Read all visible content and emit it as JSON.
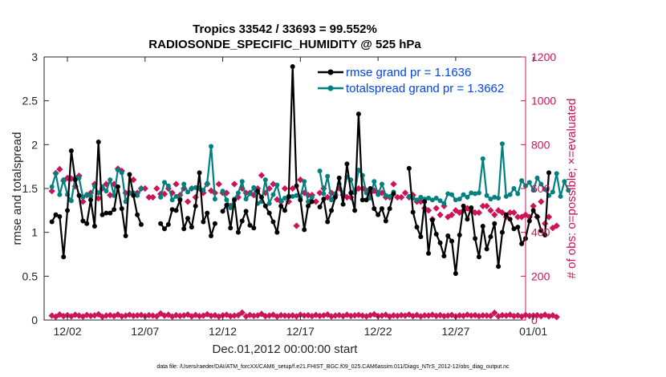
{
  "chart_data": {
    "type": "line",
    "title": [
      "Tropics 33542 / 33693 = 99.552%",
      "RADIOSONDE_SPECIFIC_HUMIDITY @ 525 hPa"
    ],
    "xlabel": "Dec.01,2012 00:00:00 start",
    "ylabel_left": "rmse and totalspread",
    "ylabel_right": "# of obs: o=possible; ×=evaluated",
    "x_range_days": [
      0.5,
      31.5
    ],
    "ylim_left": [
      0,
      3
    ],
    "ylim_right": [
      0,
      1200
    ],
    "x_ticks": [
      {
        "day": 2,
        "label": "12/02"
      },
      {
        "day": 7,
        "label": "12/07"
      },
      {
        "day": 12,
        "label": "12/12"
      },
      {
        "day": 17,
        "label": "12/17"
      },
      {
        "day": 22,
        "label": "12/22"
      },
      {
        "day": 27,
        "label": "12/27"
      },
      {
        "day": 32,
        "label": "01/01"
      }
    ],
    "y_ticks_left": [
      "0",
      "0.5",
      "1",
      "1.5",
      "2",
      "2.5",
      "3"
    ],
    "y_ticks_right": [
      "0",
      "200",
      "400",
      "600",
      "800",
      "1000",
      "1200"
    ],
    "step_days": 0.25,
    "series": [
      {
        "name": "rmse",
        "legend": "rmse grand pr = 1.1636",
        "color": "#000000",
        "axis": "left",
        "values": [
          1.12,
          1.2,
          1.18,
          0.72,
          1.25,
          1.93,
          1.6,
          1.42,
          1.13,
          1.1,
          1.37,
          1.07,
          2.03,
          1.2,
          1.22,
          1.22,
          1.26,
          1.52,
          1.27,
          0.96,
          1.66,
          1.42,
          1.2,
          1.09,
          null,
          null,
          null,
          null,
          1.1,
          1.04,
          1.09,
          1.26,
          1.25,
          1.37,
          1.04,
          1.16,
          1.06,
          1.3,
          1.68,
          1.12,
          1.22,
          0.96,
          1.1,
          null,
          1.24,
          1.31,
          1.05,
          1.37,
          1.0,
          1.13,
          1.24,
          1.08,
          1.05,
          1.47,
          1.4,
          1.3,
          1.22,
          1.12,
          1.0,
          1.3,
          1.25,
          1.41,
          2.89,
          1.53,
          1.37,
          1.03,
          1.3,
          1.35,
          null,
          1.29,
          1.38,
          1.12,
          1.25,
          1.4,
          1.62,
          1.32,
          1.78,
          1.45,
          1.25,
          2.35,
          1.37,
          1.37,
          1.5,
          1.27,
          1.2,
          1.27,
          1.13,
          1.27,
          1.44,
          null,
          null,
          null,
          1.73,
          1.23,
          1.06,
          0.95,
          1.35,
          0.76,
          1.14,
          0.98,
          0.88,
          0.73,
          0.96,
          0.9,
          0.53,
          0.97,
          1.3,
          1.15,
          1.28,
          0.93,
          0.72,
          1.07,
          0.81,
          0.95,
          1.1,
          0.61,
          1.0,
          1.2,
          1.15,
          1.04,
          1.06,
          0.87,
          0.93,
          1.13,
          1.25,
          1.18,
          1.02,
          0.97,
          1.68
        ]
      },
      {
        "name": "totalspread",
        "legend": "totalspread grand pr = 1.3662",
        "color": "#00807f",
        "axis": "left",
        "values": [
          1.52,
          1.67,
          1.43,
          1.6,
          1.43,
          1.36,
          1.62,
          1.62,
          1.4,
          1.43,
          1.41,
          1.53,
          1.45,
          1.52,
          1.47,
          1.6,
          1.42,
          1.71,
          1.68,
          1.35,
          1.45,
          1.45,
          1.42,
          1.5,
          null,
          null,
          null,
          null,
          1.4,
          1.57,
          1.53,
          1.37,
          1.41,
          1.38,
          1.55,
          1.46,
          1.5,
          1.51,
          1.5,
          1.48,
          1.56,
          1.98,
          1.38,
          null,
          1.47,
          1.37,
          1.28,
          1.38,
          1.45,
          1.58,
          1.38,
          1.44,
          1.51,
          1.33,
          1.35,
          1.6,
          1.33,
          1.43,
          1.54,
          1.36,
          1.39,
          1.4,
          1.41,
          1.42,
          1.4,
          1.58,
          1.35,
          1.4,
          null,
          1.7,
          1.44,
          1.64,
          1.37,
          1.44,
          1.55,
          1.44,
          1.63,
          1.6,
          1.45,
          1.71,
          1.65,
          1.45,
          1.39,
          1.58,
          1.43,
          1.55,
          1.42,
          1.41,
          1.46,
          null,
          null,
          null,
          1.41,
          1.39,
          1.37,
          1.4,
          1.38,
          1.39,
          1.37,
          1.39,
          1.36,
          1.33,
          1.44,
          1.43,
          1.37,
          1.38,
          1.43,
          1.4,
          1.45,
          1.44,
          1.45,
          1.84,
          1.42,
          1.38,
          1.4,
          1.39,
          2.01,
          1.41,
          1.43,
          1.5,
          1.44,
          1.59,
          1.53,
          1.57,
          1.48,
          1.62,
          1.55,
          1.49,
          1.42,
          1.46,
          1.67,
          1.41,
          1.58,
          1.48
        ]
      },
      {
        "name": "evaluated",
        "color": "#cc1456",
        "axis": "right",
        "values": [
          588,
          670,
          688,
          635,
          648,
          645,
          610,
          658,
          540,
          570,
          580,
          620,
          555,
          600,
          620,
          570,
          620,
          690,
          680,
          580,
          580,
          640,
          580,
          600,
          600,
          560,
          560,
          600,
          575,
          575,
          600,
          580,
          620,
          570,
          600,
          540,
          600,
          560,
          600,
          580,
          620,
          590,
          580,
          620,
          580,
          580,
          520,
          620,
          560,
          600,
          580,
          580,
          570,
          600,
          660,
          580,
          600,
          620,
          550,
          540,
          600,
          540,
          600,
          430,
          640,
          580,
          570,
          570,
          540,
          580,
          600,
          560,
          580,
          570,
          600,
          570,
          560,
          560,
          590,
          600,
          600,
          590,
          580,
          590,
          580,
          580,
          560,
          560,
          620,
          560,
          560,
          580,
          560,
          570,
          540,
          540,
          510,
          500,
          460,
          510,
          480,
          520,
          470,
          480,
          500,
          490,
          500,
          510,
          500,
          490,
          490,
          520,
          520,
          500,
          480,
          500,
          490,
          470,
          490,
          490,
          470,
          470,
          480,
          470,
          520,
          470,
          540,
          440,
          470,
          420,
          430
        ]
      },
      {
        "name": "possible",
        "color": "#cc1456",
        "axis": "right",
        "values": [
          20,
          15,
          25,
          18,
          22,
          17,
          24,
          20,
          16,
          23,
          19,
          21,
          26,
          15,
          20,
          22,
          18,
          25,
          17,
          20,
          24,
          19,
          21,
          23,
          18,
          22,
          20,
          17,
          30,
          20,
          24,
          16,
          22,
          19,
          21,
          25,
          17,
          23,
          18,
          20,
          26,
          19,
          22,
          16,
          21,
          24,
          18,
          20,
          22,
          34,
          17,
          23,
          19,
          21,
          28,
          18,
          20,
          24,
          16,
          22,
          20,
          19,
          21,
          17,
          24,
          20,
          22,
          18,
          23,
          19,
          21,
          25,
          17,
          20,
          22,
          18,
          24,
          19,
          21,
          23,
          20,
          17,
          22,
          26,
          18,
          20,
          24,
          16,
          21,
          19,
          22,
          20,
          25,
          18,
          23,
          17,
          21,
          20,
          24,
          19,
          22,
          18,
          20,
          23,
          17,
          21,
          19,
          24,
          20,
          22,
          18,
          21,
          20,
          19,
          33,
          17,
          22,
          20,
          24,
          18,
          21,
          16,
          23,
          19,
          20,
          22,
          18,
          24,
          17,
          21,
          14
        ]
      }
    ]
  },
  "legend": {
    "rmse": "rmse grand pr = 1.1636",
    "totalspread": "totalspread grand pr = 1.3662"
  },
  "footer": "data file: /Users/raeder/DAI/ATM_forcXX/CAM6_setup/f.e21.FHIST_BGC.f09_025.CAM6assim.011/Diags_NTrS_2012-12/obs_diag_output.nc",
  "colors": {
    "axis": "#262626",
    "right_axis": "#cc1456",
    "legend_text": "#0044ee"
  }
}
